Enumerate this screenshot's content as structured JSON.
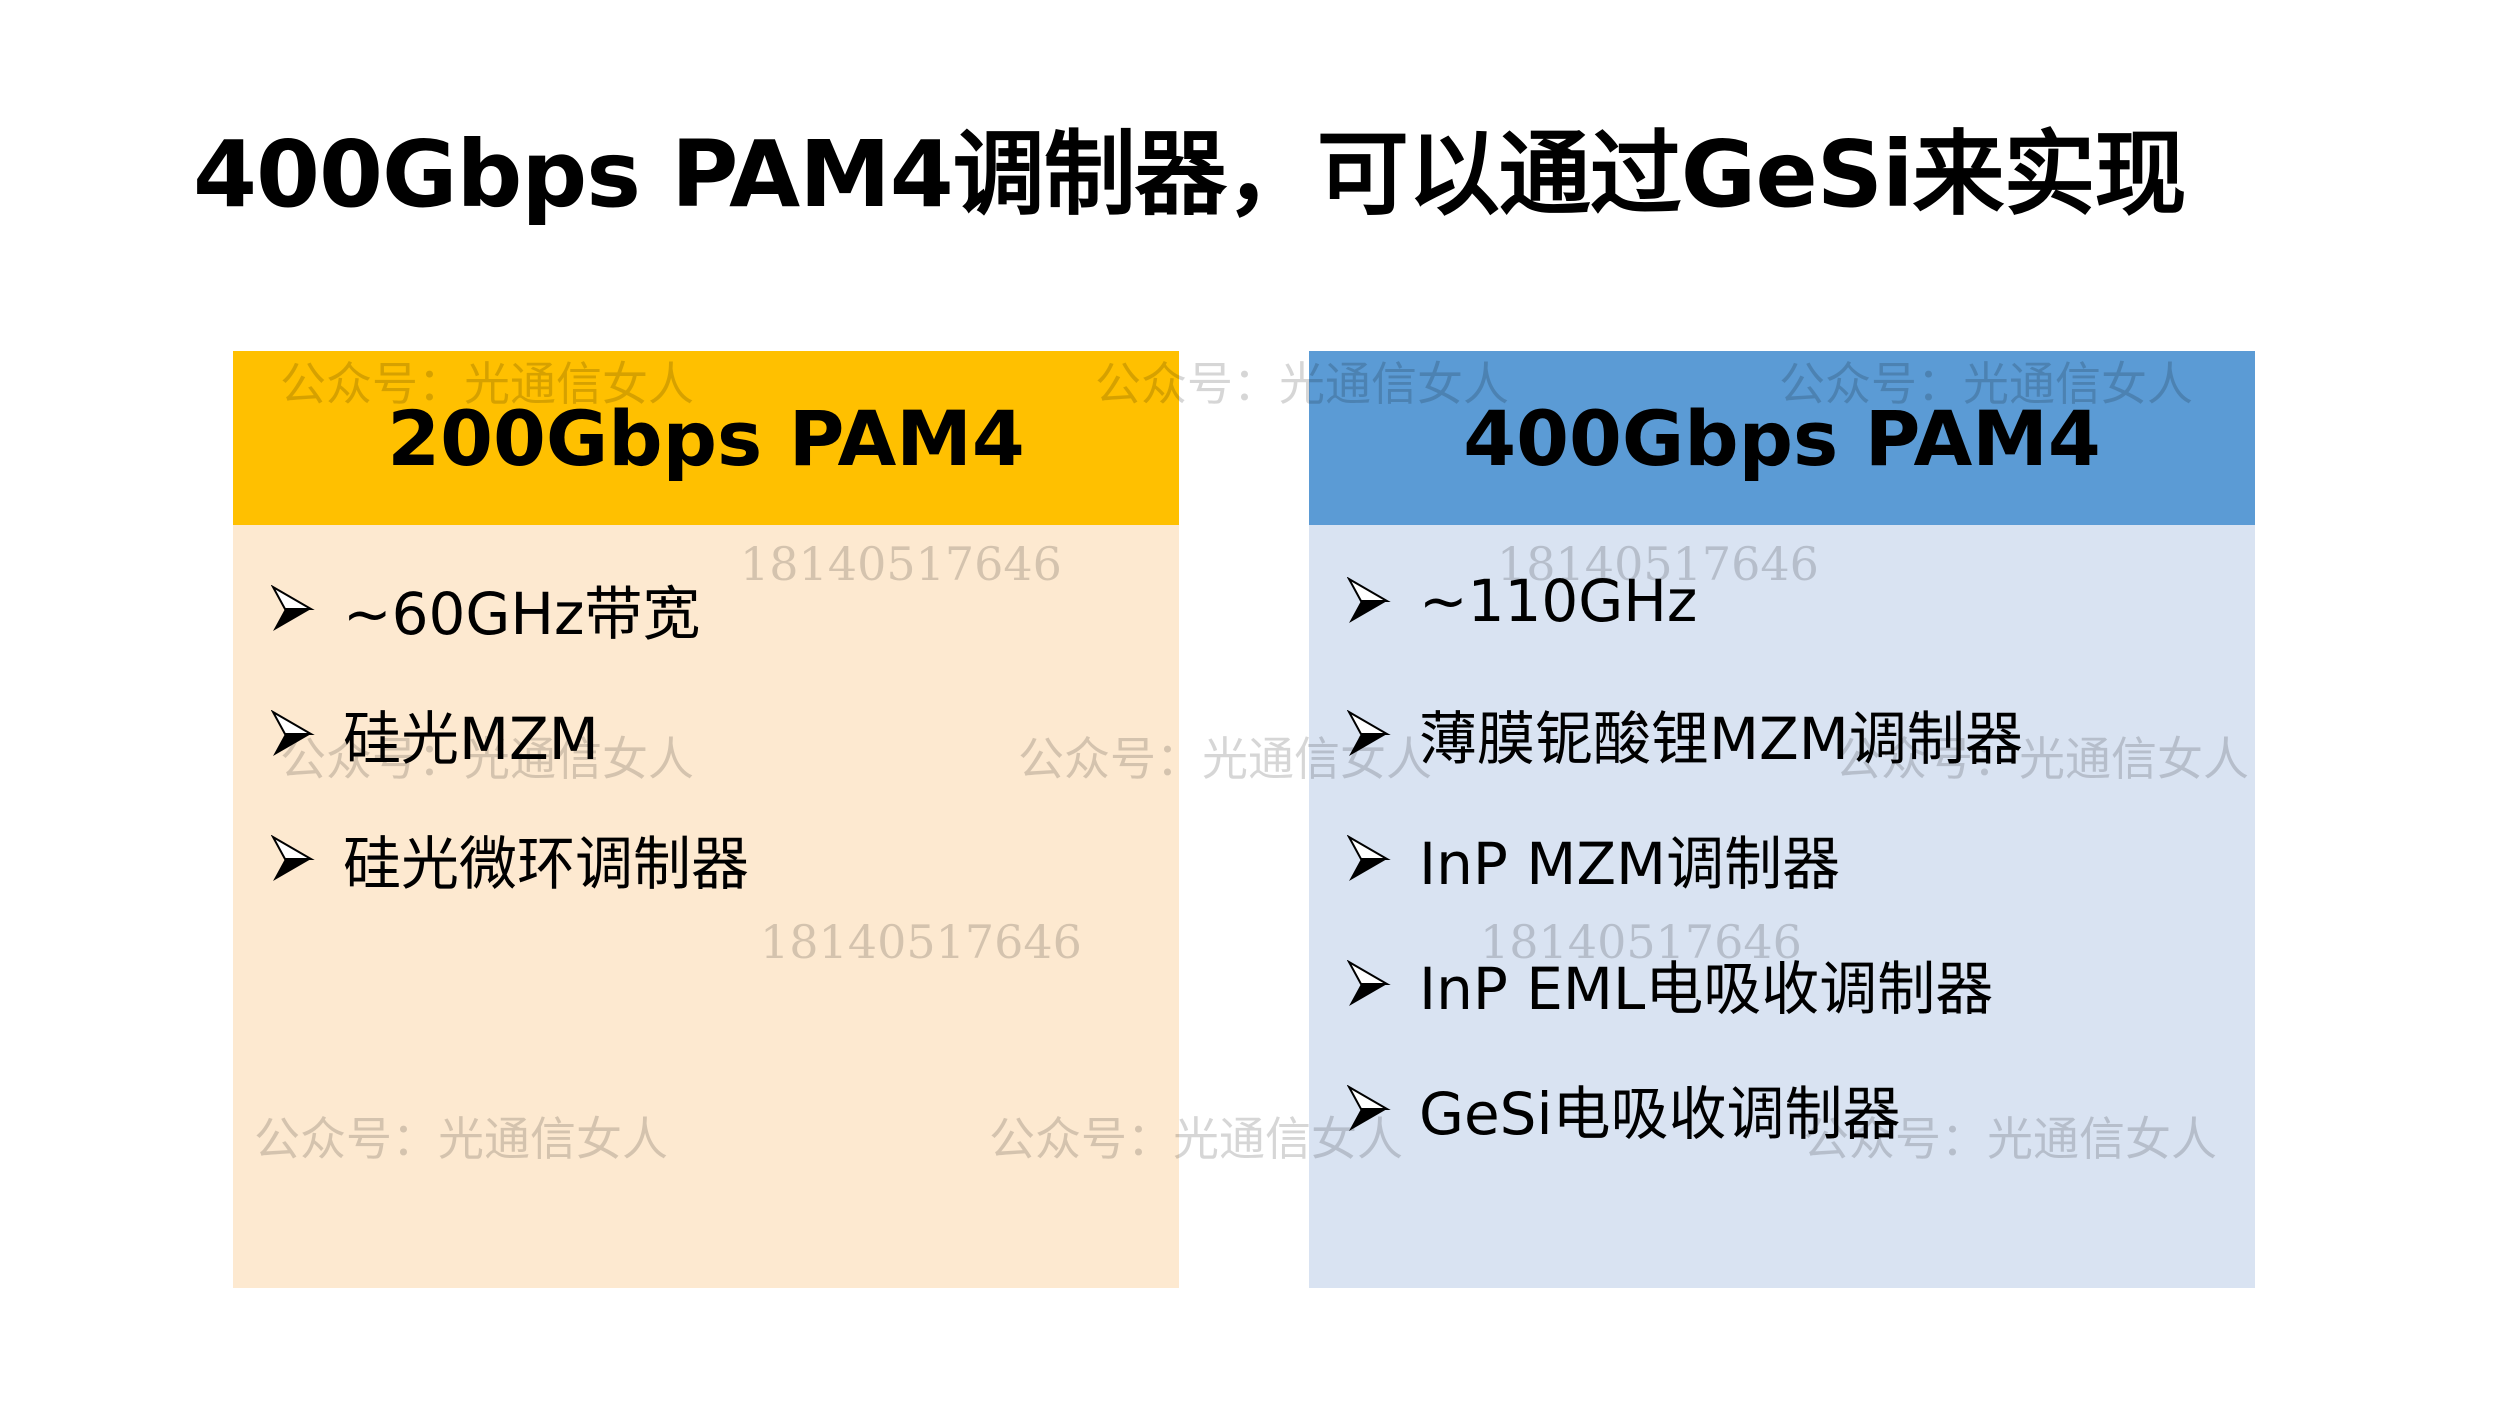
{
  "slide": {
    "title": "400Gbps PAM4调制器，可以通过GeSi来实现",
    "left": {
      "header": "200Gbps PAM4",
      "header_color": "#FFC000",
      "body_color": "#FDE9D0",
      "items": [
        "~60GHz带宽",
        "硅光MZM",
        "硅光微环调制器"
      ]
    },
    "right": {
      "header": "400Gbps PAM4",
      "header_color": "#5B9BD5",
      "body_color": "#D9E3F2",
      "items": [
        "~110GHz",
        "薄膜铌酸锂MZM调制器",
        "InP MZM调制器",
        "InP EML电吸收调制器",
        "GeSi电吸收调制器"
      ]
    },
    "bullet_icon": "arrowhead-bullet-icon"
  },
  "watermark": {
    "text": "公众号：光通信女人",
    "number": "18140517646"
  }
}
